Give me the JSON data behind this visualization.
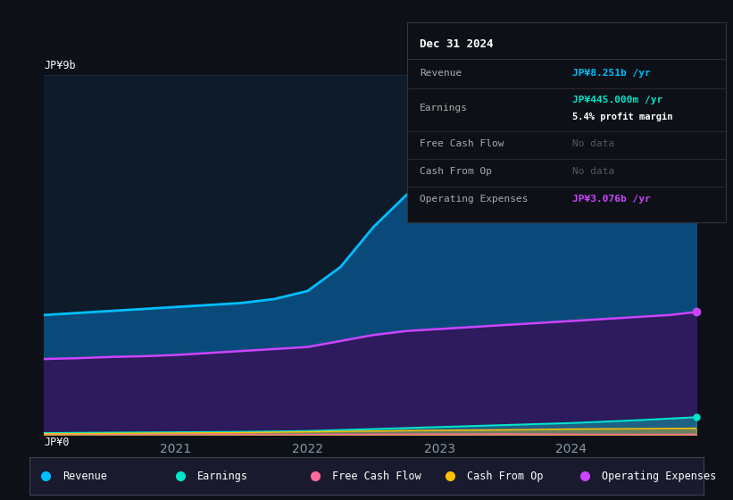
{
  "bg_color": "#0d1117",
  "chart_bg": "#0d1b2a",
  "y_label_top": "JP¥9b",
  "y_label_bottom": "JP¥0",
  "x_ticks": [
    2021,
    2022,
    2023,
    2024
  ],
  "x_range": [
    2020.0,
    2024.95
  ],
  "y_range": [
    0,
    9000000000
  ],
  "revenue_color": "#00bfff",
  "earnings_color": "#00e5cc",
  "fcf_color": "#ff6b9d",
  "cashfromop_color": "#ffc107",
  "opex_color": "#cc44ff",
  "revenue_fill": "#0a4a7a",
  "opex_fill": "#2d1b5e",
  "info_box_bg": "#0d1117",
  "legend_bg": "#1a1a2e",
  "revenue_x": [
    2020.0,
    2020.25,
    2020.5,
    2020.75,
    2021.0,
    2021.25,
    2021.5,
    2021.75,
    2022.0,
    2022.25,
    2022.5,
    2022.75,
    2023.0,
    2023.25,
    2023.5,
    2023.75,
    2024.0,
    2024.25,
    2024.5,
    2024.75,
    2024.95
  ],
  "revenue_y": [
    3000000000,
    3050000000,
    3100000000,
    3150000000,
    3200000000,
    3250000000,
    3300000000,
    3400000000,
    3600000000,
    4200000000,
    5200000000,
    6000000000,
    6600000000,
    7000000000,
    7300000000,
    7500000000,
    7700000000,
    7900000000,
    8000000000,
    8150000000,
    8251000000
  ],
  "opex_x": [
    2020.0,
    2020.25,
    2020.5,
    2020.75,
    2021.0,
    2021.25,
    2021.5,
    2021.75,
    2022.0,
    2022.25,
    2022.5,
    2022.75,
    2023.0,
    2023.25,
    2023.5,
    2023.75,
    2024.0,
    2024.25,
    2024.5,
    2024.75,
    2024.95
  ],
  "opex_y": [
    1900000000,
    1920000000,
    1950000000,
    1970000000,
    2000000000,
    2050000000,
    2100000000,
    2150000000,
    2200000000,
    2350000000,
    2500000000,
    2600000000,
    2650000000,
    2700000000,
    2750000000,
    2800000000,
    2850000000,
    2900000000,
    2950000000,
    3000000000,
    3076000000
  ],
  "earnings_x": [
    2020.0,
    2020.5,
    2021.0,
    2021.5,
    2022.0,
    2022.5,
    2023.0,
    2023.5,
    2024.0,
    2024.5,
    2024.95
  ],
  "earnings_y": [
    50000000,
    60000000,
    70000000,
    80000000,
    100000000,
    150000000,
    200000000,
    250000000,
    300000000,
    370000000,
    445000000
  ],
  "fcf_x": [
    2020.0,
    2020.5,
    2021.0,
    2021.5,
    2022.0,
    2022.5,
    2023.0,
    2023.5,
    2024.0,
    2024.5,
    2024.95
  ],
  "fcf_y": [
    20000000,
    25000000,
    30000000,
    20000000,
    15000000,
    20000000,
    25000000,
    30000000,
    20000000,
    15000000,
    20000000
  ],
  "cashfromop_x": [
    2020.0,
    2020.5,
    2021.0,
    2021.5,
    2022.0,
    2022.5,
    2023.0,
    2023.5,
    2024.0,
    2024.5,
    2024.95
  ],
  "cashfromop_y": [
    30000000,
    40000000,
    50000000,
    60000000,
    80000000,
    100000000,
    120000000,
    130000000,
    150000000,
    160000000,
    170000000
  ],
  "grid_color": "#1e2d3d",
  "tick_color": "#8899aa",
  "info_title": "Dec 31 2024",
  "info_rows": [
    {
      "label": "Revenue",
      "value": "JP¥8.251b /yr",
      "value_color": "#00bfff",
      "subvalue": null
    },
    {
      "label": "Earnings",
      "value": "JP¥445.000m /yr",
      "value_color": "#00e5cc",
      "subvalue": "5.4% profit margin"
    },
    {
      "label": "Free Cash Flow",
      "value": "No data",
      "value_color": "#555566",
      "subvalue": null
    },
    {
      "label": "Cash From Op",
      "value": "No data",
      "value_color": "#555566",
      "subvalue": null
    },
    {
      "label": "Operating Expenses",
      "value": "JP¥3.076b /yr",
      "value_color": "#cc44ff",
      "subvalue": null
    }
  ],
  "legend_items": [
    {
      "label": "Revenue",
      "color": "#00bfff"
    },
    {
      "label": "Earnings",
      "color": "#00e5cc"
    },
    {
      "label": "Free Cash Flow",
      "color": "#ff6b9d"
    },
    {
      "label": "Cash From Op",
      "color": "#ffc107"
    },
    {
      "label": "Operating Expenses",
      "color": "#cc44ff"
    }
  ]
}
